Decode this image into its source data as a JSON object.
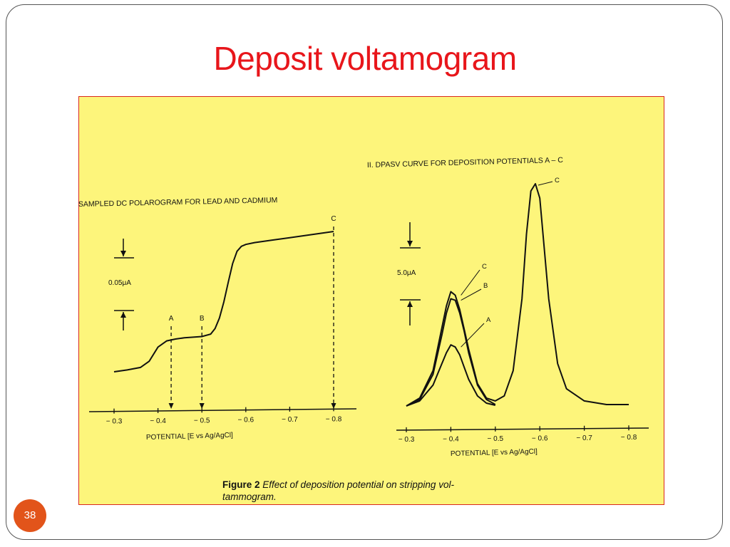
{
  "slide": {
    "title": "Deposit voltamogram",
    "page_number": "38"
  },
  "figure": {
    "caption_label": "Figure 2",
    "caption_text": "Effect of deposition potential on stripping vol-tammogram."
  },
  "chart_data": [
    {
      "type": "line",
      "title": "SAMPLED DC POLAROGRAM FOR LEAD AND CADMIUM",
      "xlabel": "POTENTIAL  [E vs Ag/AgCl]",
      "ylabel": "",
      "x_ticks": [
        "-0.3",
        "-0.4",
        "-0.5",
        "-0.6",
        "-0.7",
        "-0.8"
      ],
      "xlim": [
        -0.25,
        -0.83
      ],
      "ylim": [
        0,
        0.27
      ],
      "scale_bar_label": "0.05μA",
      "scale_bar_value": 0.05,
      "series": [
        {
          "name": "",
          "x": [
            -0.3,
            -0.33,
            -0.36,
            -0.38,
            -0.4,
            -0.42,
            -0.44,
            -0.46,
            -0.48,
            -0.5,
            -0.52,
            -0.53,
            -0.54,
            -0.55,
            -0.56,
            -0.57,
            -0.58,
            -0.59,
            -0.6,
            -0.62,
            -0.66,
            -0.7,
            -0.74,
            -0.78,
            -0.8
          ],
          "y": [
            0.005,
            0.008,
            0.012,
            0.022,
            0.045,
            0.055,
            0.058,
            0.06,
            0.061,
            0.062,
            0.066,
            0.075,
            0.092,
            0.118,
            0.15,
            0.18,
            0.2,
            0.208,
            0.211,
            0.214,
            0.218,
            0.222,
            0.226,
            0.23,
            0.232
          ]
        }
      ],
      "markers": [
        {
          "label": "A",
          "x": -0.43
        },
        {
          "label": "B",
          "x": -0.5
        },
        {
          "label": "C",
          "x": -0.8
        }
      ]
    },
    {
      "type": "line",
      "title": "II. DPASV CURVE FOR DEPOSITION POTENTIALS A – C",
      "xlabel": "POTENTIAL  [E vs Ag/AgCl]",
      "ylabel": "",
      "x_ticks": [
        "-0.3",
        "-0.4",
        "-0.5",
        "-0.6",
        "-0.7",
        "-0.8"
      ],
      "xlim": [
        -0.28,
        -0.84
      ],
      "ylim": [
        0,
        36
      ],
      "scale_bar_label": "5.0μA",
      "scale_bar_value": 5.0,
      "series": [
        {
          "name": "A",
          "x": [
            -0.3,
            -0.33,
            -0.36,
            -0.38,
            -0.39,
            -0.4,
            -0.41,
            -0.42,
            -0.43,
            -0.44,
            -0.46,
            -0.48,
            -0.5
          ],
          "y": [
            0.1,
            0.8,
            3.0,
            6.0,
            7.5,
            8.6,
            8.3,
            7.2,
            5.5,
            3.8,
            1.5,
            0.5,
            0.2
          ]
        },
        {
          "name": "B",
          "x": [
            -0.3,
            -0.33,
            -0.36,
            -0.38,
            -0.39,
            -0.4,
            -0.41,
            -0.42,
            -0.43,
            -0.44,
            -0.46,
            -0.48,
            -0.5
          ],
          "y": [
            0.1,
            1.0,
            4.5,
            10.0,
            13.0,
            15.0,
            14.8,
            13.0,
            10.5,
            7.5,
            3.0,
            1.0,
            0.3
          ]
        },
        {
          "name": "C",
          "x": [
            -0.3,
            -0.33,
            -0.36,
            -0.38,
            -0.39,
            -0.4,
            -0.41,
            -0.42,
            -0.43,
            -0.44,
            -0.46,
            -0.48,
            -0.5,
            -0.52,
            -0.54,
            -0.56,
            -0.57,
            -0.58,
            -0.59,
            -0.6,
            -0.62,
            -0.64,
            -0.66,
            -0.7,
            -0.75,
            -0.8
          ],
          "y": [
            0.1,
            1.2,
            5.0,
            11.0,
            14.0,
            16.0,
            15.5,
            13.5,
            10.8,
            8.0,
            3.2,
            1.2,
            0.8,
            1.5,
            5.0,
            15.0,
            24.0,
            30.0,
            31.0,
            29.0,
            15.0,
            6.0,
            2.5,
            0.8,
            0.3,
            0.3
          ]
        }
      ]
    }
  ]
}
